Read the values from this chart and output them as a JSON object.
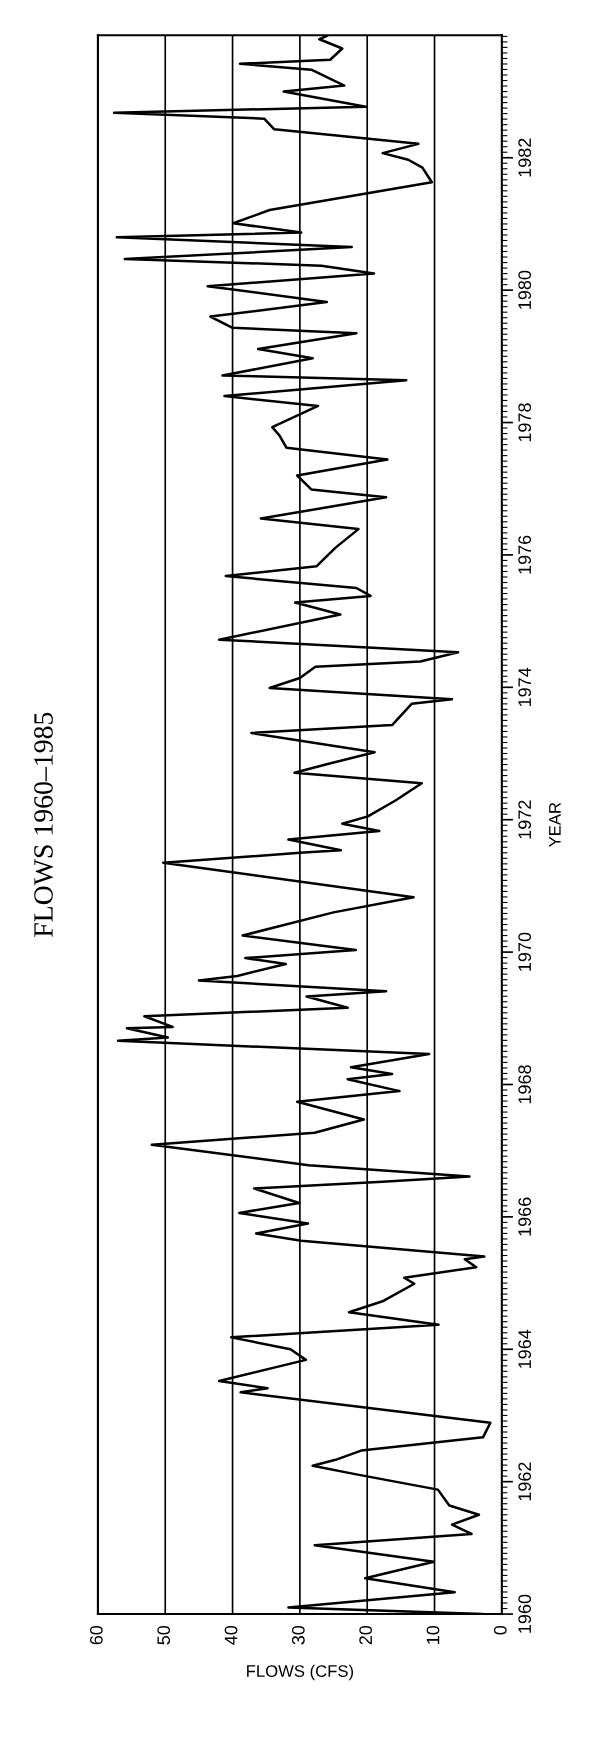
{
  "chart_data": {
    "type": "line",
    "title": "FLOWS 1960–1985",
    "ylabel": "YEAR",
    "xlabel": "FLOWS (CFS)",
    "ylim": [
      1960,
      1983.85
    ],
    "yticks": [
      1960,
      1962,
      1964,
      1966,
      1968,
      1970,
      1972,
      1974,
      1976,
      1978,
      1980,
      1982
    ],
    "xlim": [
      60,
      0
    ],
    "xticks": [
      0,
      10,
      20,
      30,
      40,
      50,
      60
    ],
    "grid": "x",
    "series": [
      {
        "color": "#000000",
        "values": [
          1960.0,
          1960.1,
          1960.33,
          1960.54,
          1960.79,
          1961.04,
          1961.21,
          1961.35,
          1961.5,
          1961.64,
          1961.88,
          1962.11,
          1962.24,
          1962.33,
          1962.47,
          1962.67,
          1962.89,
          1963.35,
          1963.41,
          1963.52,
          1963.84,
          1964.0,
          1964.18,
          1964.37,
          1964.56,
          1964.73,
          1964.99,
          1965.08,
          1965.24,
          1965.36,
          1965.4,
          1965.64,
          1965.75,
          1965.9,
          1966.06,
          1966.21,
          1966.43,
          1966.53,
          1966.61,
          1966.78,
          1967.09,
          1967.27,
          1967.47,
          1967.74,
          1967.9,
          1968.08,
          1968.16,
          1968.26,
          1968.46,
          1968.66,
          1968.71,
          1968.85,
          1968.87,
          1969.03,
          1969.16,
          1969.33,
          1969.41,
          1969.57,
          1969.64,
          1969.82,
          1969.91,
          1970.03,
          1970.25,
          1970.6,
          1970.83,
          1971.35,
          1971.5,
          1971.54,
          1971.7,
          1971.83,
          1971.94,
          1972.05,
          1972.29,
          1972.55,
          1972.71,
          1972.83,
          1973.02,
          1973.31,
          1973.43,
          1973.75,
          1973.82,
          1973.99,
          1974.14,
          1974.31,
          1974.39,
          1974.53,
          1974.72,
          1975.1,
          1975.28,
          1975.38,
          1975.5,
          1975.68,
          1975.83,
          1976.11,
          1976.39,
          1976.55,
          1976.87,
          1976.99,
          1977.2,
          1977.44,
          1977.62,
          1977.8,
          1977.93,
          1978.25,
          1978.4,
          1978.64,
          1978.71,
          1978.97,
          1979.11,
          1979.35,
          1979.43,
          1979.6,
          1979.82,
          1980.06,
          1980.25,
          1980.37,
          1980.47,
          1980.65,
          1980.8,
          1980.87,
          1981.01,
          1981.21,
          1981.63,
          1981.85,
          1981.97,
          1982.07,
          1982.21,
          1982.43,
          1982.59,
          1982.68,
          1982.77,
          1983.0,
          1983.09,
          1983.33,
          1983.42,
          1983.48,
          1983.65,
          1983.79,
          1983.84
        ],
        "x": [
          3,
          31.7,
          7.0,
          20.3,
          10.1,
          27.8,
          4.5,
          7.4,
          3.4,
          7.8,
          9.5,
          21.6,
          28.1,
          24.7,
          20.9,
          2.8,
          1.7,
          38.8,
          34.8,
          42.0,
          29.1,
          31.4,
          40.2,
          9.4,
          22.7,
          17.6,
          13.0,
          14.5,
          3.8,
          5.5,
          2.6,
          29.8,
          36.5,
          28.8,
          39.0,
          30.1,
          36.8,
          17.7,
          4.8,
          28.7,
          52,
          27.8,
          20.5,
          30.4,
          15.2,
          22.9,
          16.3,
          22.4,
          10.8,
          57,
          49.6,
          55.7,
          48.9,
          53.1,
          22.9,
          29,
          17.2,
          45,
          39.3,
          32.1,
          38.1,
          21.7,
          38.5,
          25,
          13.1,
          50.3,
          30,
          23.9,
          31.7,
          18.2,
          23.7,
          19.9,
          15.8,
          11.9,
          30.8,
          26.3,
          18.9,
          37.2,
          16.3,
          13.4,
          7.4,
          34.5,
          30.0,
          27.7,
          12.1,
          6.5,
          42,
          24,
          30.7,
          19.5,
          21.6,
          41,
          27.5,
          24.7,
          21.3,
          35.8,
          17.2,
          28.3,
          30.4,
          17,
          32,
          33,
          34.1,
          27.3,
          41.2,
          14.2,
          41.5,
          28.1,
          36.2,
          21.6,
          40,
          43.3,
          26,
          43.7,
          19,
          26.8,
          56,
          22.3,
          57.2,
          29.8,
          39.9,
          34.5,
          10.4,
          11.8,
          13.9,
          17.7,
          12.4,
          33.8,
          35.3,
          57.6,
          20.2,
          32.4,
          23.4,
          28.3,
          38.9,
          25.5,
          23.7,
          27.1,
          26
        ]
      }
    ]
  }
}
